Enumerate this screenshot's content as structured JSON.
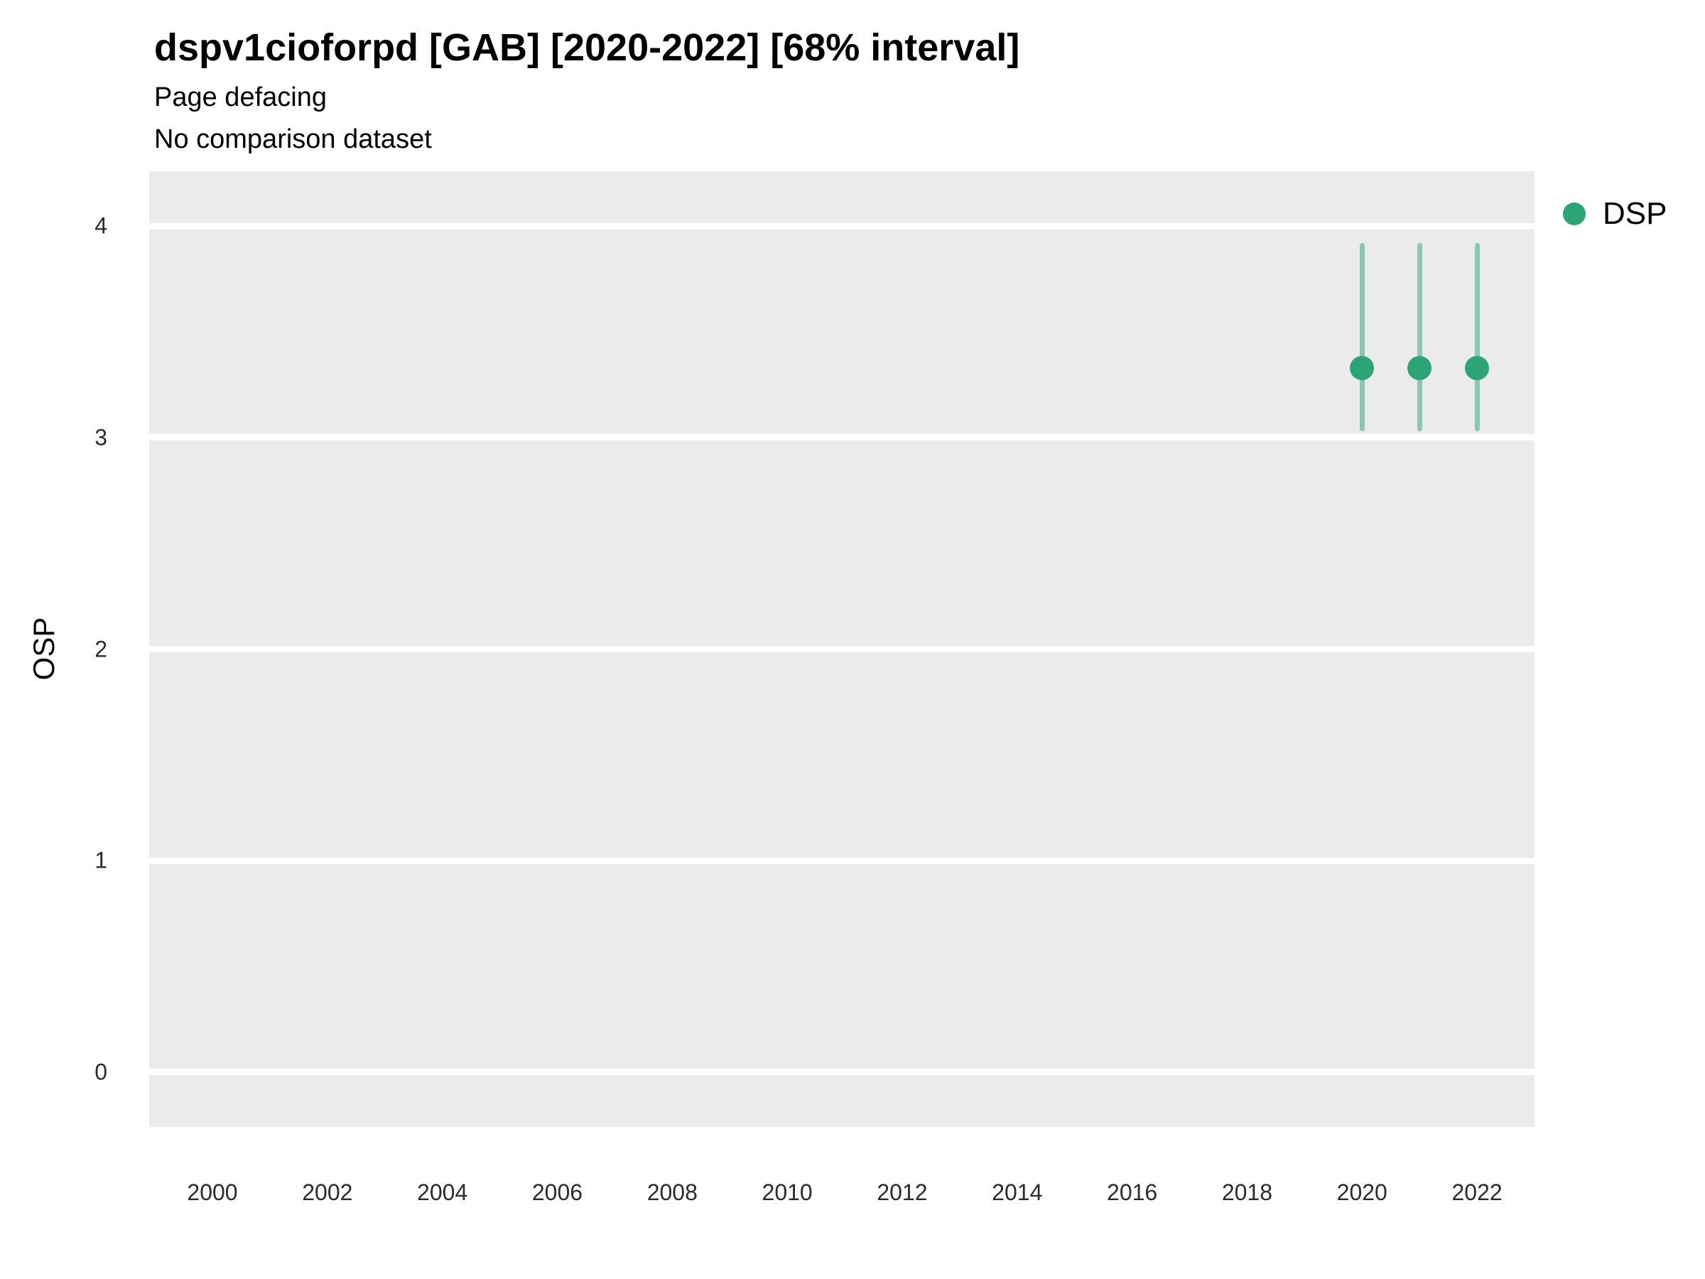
{
  "header": {
    "title": "dspv1cioforpd [GAB] [2020-2022] [68% interval]",
    "subtitle": "Page defacing",
    "note": "No comparison dataset"
  },
  "legend": {
    "position": "right",
    "items": [
      {
        "label": "DSP",
        "color": "#2ba577"
      }
    ]
  },
  "colors": {
    "panel_background": "#ebebeb",
    "gridline": "#ffffff",
    "point": "#2ba577",
    "interval": "rgba(43,165,119,0.5)"
  },
  "chart_data": {
    "type": "scatter",
    "title": "dspv1cioforpd [GAB] [2020-2022] [68% interval]",
    "subtitle": "Page defacing",
    "note": "No comparison dataset",
    "interval": "68% interval",
    "xlabel": "",
    "ylabel": "OSP",
    "xlim": [
      1998.9,
      2023.0
    ],
    "ylim": [
      -0.26,
      4.26
    ],
    "x_ticks": [
      2000,
      2002,
      2004,
      2006,
      2008,
      2010,
      2012,
      2014,
      2016,
      2018,
      2020,
      2022
    ],
    "y_ticks": [
      0,
      1,
      2,
      3,
      4
    ],
    "grid": "major horizontal white gridlines on gray panel, no vertical gridlines",
    "legend_position": "right",
    "series": [
      {
        "name": "DSP",
        "color": "#2ba577",
        "interval_color": "rgba(43,165,119,0.5)",
        "points": [
          {
            "x": 2020,
            "y": 3.33,
            "ymin": 3.03,
            "ymax": 3.92
          },
          {
            "x": 2021,
            "y": 3.33,
            "ymin": 3.03,
            "ymax": 3.92
          },
          {
            "x": 2022,
            "y": 3.33,
            "ymin": 3.03,
            "ymax": 3.92
          }
        ]
      }
    ]
  }
}
